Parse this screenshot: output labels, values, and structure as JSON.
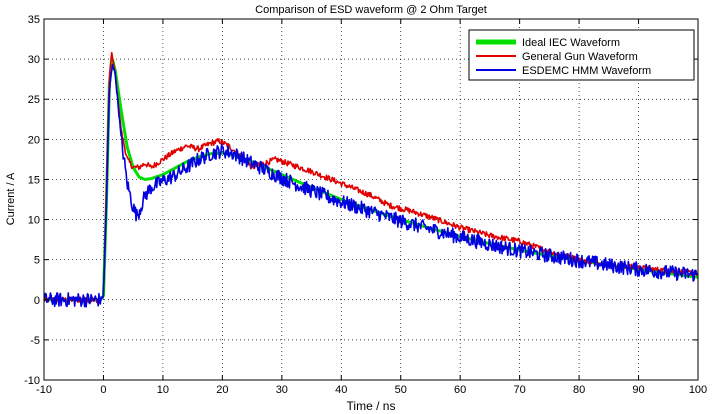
{
  "chart_data": {
    "type": "line",
    "title": "Comparison of ESD waveform @ 2 Ohm Target",
    "xlabel": "Time / ns",
    "ylabel": "Current / A",
    "xlim": [
      -10,
      100
    ],
    "ylim": [
      -10,
      35
    ],
    "xticks": [
      -10,
      0,
      10,
      20,
      30,
      40,
      50,
      60,
      70,
      80,
      90,
      100
    ],
    "yticks": [
      -10,
      -5,
      0,
      5,
      10,
      15,
      20,
      25,
      30,
      35
    ],
    "grid": true,
    "legend_position": "top-right",
    "series": [
      {
        "name": "Ideal IEC Waveform",
        "color": "#00e000",
        "noise": 0.0,
        "points": [
          [
            -10,
            0
          ],
          [
            -0.5,
            0
          ],
          [
            0,
            0.5
          ],
          [
            0.5,
            12
          ],
          [
            1,
            27
          ],
          [
            1.5,
            30
          ],
          [
            2,
            28.5
          ],
          [
            3,
            23.5
          ],
          [
            4,
            19
          ],
          [
            5,
            16.5
          ],
          [
            6,
            15.3
          ],
          [
            7,
            15
          ],
          [
            8,
            15.1
          ],
          [
            10,
            15.6
          ],
          [
            12,
            16.4
          ],
          [
            14,
            17.2
          ],
          [
            16,
            17.8
          ],
          [
            18,
            18.2
          ],
          [
            20,
            18.3
          ],
          [
            22,
            18
          ],
          [
            25,
            17.2
          ],
          [
            30,
            15.6
          ],
          [
            35,
            14
          ],
          [
            40,
            12.5
          ],
          [
            45,
            11.2
          ],
          [
            50,
            10
          ],
          [
            55,
            8.9
          ],
          [
            60,
            7.9
          ],
          [
            65,
            7
          ],
          [
            70,
            6.2
          ],
          [
            75,
            5.5
          ],
          [
            80,
            4.9
          ],
          [
            85,
            4.3
          ],
          [
            90,
            3.8
          ],
          [
            95,
            3.3
          ],
          [
            100,
            2.8
          ]
        ]
      },
      {
        "name": "General Gun Waveform",
        "color": "#e00000",
        "noise": 0.35,
        "points": [
          [
            -10,
            0
          ],
          [
            -0.5,
            0
          ],
          [
            0,
            0.5
          ],
          [
            0.5,
            14
          ],
          [
            1,
            28
          ],
          [
            1.4,
            30.8
          ],
          [
            2,
            28
          ],
          [
            3,
            21
          ],
          [
            4,
            17.5
          ],
          [
            5,
            16.5
          ],
          [
            6,
            16.5
          ],
          [
            7,
            17
          ],
          [
            8,
            16.5
          ],
          [
            10,
            17.5
          ],
          [
            12,
            18.5
          ],
          [
            14,
            19.2
          ],
          [
            16,
            18.8
          ],
          [
            18,
            19.5
          ],
          [
            19.5,
            19.8
          ],
          [
            21,
            19.2
          ],
          [
            23,
            18
          ],
          [
            25,
            16.5
          ],
          [
            27,
            17
          ],
          [
            29,
            17.5
          ],
          [
            31,
            17
          ],
          [
            35,
            16
          ],
          [
            40,
            14.5
          ],
          [
            45,
            13
          ],
          [
            48,
            11.8
          ],
          [
            52,
            11
          ],
          [
            55,
            10.3
          ],
          [
            60,
            9
          ],
          [
            65,
            8
          ],
          [
            70,
            7.3
          ],
          [
            75,
            6
          ],
          [
            80,
            5
          ],
          [
            85,
            4.4
          ],
          [
            90,
            4
          ],
          [
            95,
            3.6
          ],
          [
            100,
            3.3
          ]
        ]
      },
      {
        "name": "ESDEMC HMM Waveform",
        "color": "#0000e0",
        "noise": 0.9,
        "points": [
          [
            -10,
            0
          ],
          [
            -1.5,
            0
          ],
          [
            -0.5,
            0
          ],
          [
            0,
            0.5
          ],
          [
            0.5,
            12
          ],
          [
            1,
            26
          ],
          [
            1.5,
            29.5
          ],
          [
            2,
            28
          ],
          [
            3,
            20
          ],
          [
            4,
            14.5
          ],
          [
            5,
            11.5
          ],
          [
            5.6,
            10.5
          ],
          [
            6,
            11
          ],
          [
            7,
            13
          ],
          [
            8,
            14
          ],
          [
            10,
            14.8
          ],
          [
            12,
            15.5
          ],
          [
            14,
            16.5
          ],
          [
            16,
            17.5
          ],
          [
            18,
            18.2
          ],
          [
            20,
            18.6
          ],
          [
            22,
            18.2
          ],
          [
            25,
            17
          ],
          [
            30,
            15.2
          ],
          [
            35,
            13.6
          ],
          [
            40,
            12.2
          ],
          [
            45,
            11
          ],
          [
            50,
            9.8
          ],
          [
            55,
            8.8
          ],
          [
            60,
            7.8
          ],
          [
            65,
            6.9
          ],
          [
            70,
            6.1
          ],
          [
            75,
            5.5
          ],
          [
            80,
            4.9
          ],
          [
            85,
            4.3
          ],
          [
            90,
            3.8
          ],
          [
            95,
            3.4
          ],
          [
            100,
            3.1
          ]
        ]
      }
    ]
  }
}
